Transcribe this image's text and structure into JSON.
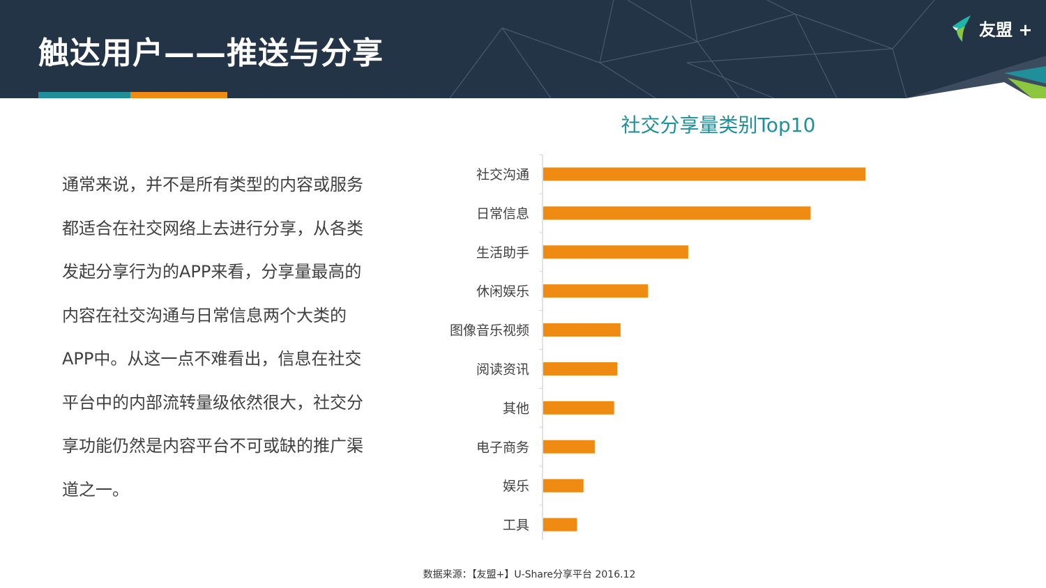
{
  "header": {
    "title": "触达用户——推送与分享",
    "logo_text": "友盟 +"
  },
  "body_text": {
    "lines": [
      "通常来说，并不是所有类型的内容或服务",
      "都适合在社交网络上去进行分享，从各类",
      "发起分享行为的APP来看，分享量最高的",
      "内容在社交沟通与日常信息两个大类的",
      "APP中。从这一点不难看出，信息在社交",
      "平台中的内部流转量级依然很大，社交分",
      "享功能仍然是内容平台不可或缺的推广渠",
      "道之一。"
    ]
  },
  "source": "数据来源：【友盟+】U-Share分享平台 2016.12",
  "colors": {
    "header_bg": "#243447",
    "teal": "#1f8f9a",
    "orange": "#ef8a12",
    "text": "#404040"
  },
  "chart_data": {
    "type": "bar",
    "orientation": "horizontal",
    "title": "社交分享量类别Top10",
    "categories": [
      "社交沟通",
      "日常信息",
      "生活助手",
      "休闲娱乐",
      "图像音乐视频",
      "阅读资讯",
      "其他",
      "电子商务",
      "娱乐",
      "工具"
    ],
    "values": [
      100,
      83,
      45,
      32.5,
      24,
      23,
      22,
      16,
      12.5,
      10.5
    ],
    "xlim": [
      0,
      100
    ],
    "grid": false,
    "legend": "none",
    "bar_color": "#ef8a12"
  }
}
